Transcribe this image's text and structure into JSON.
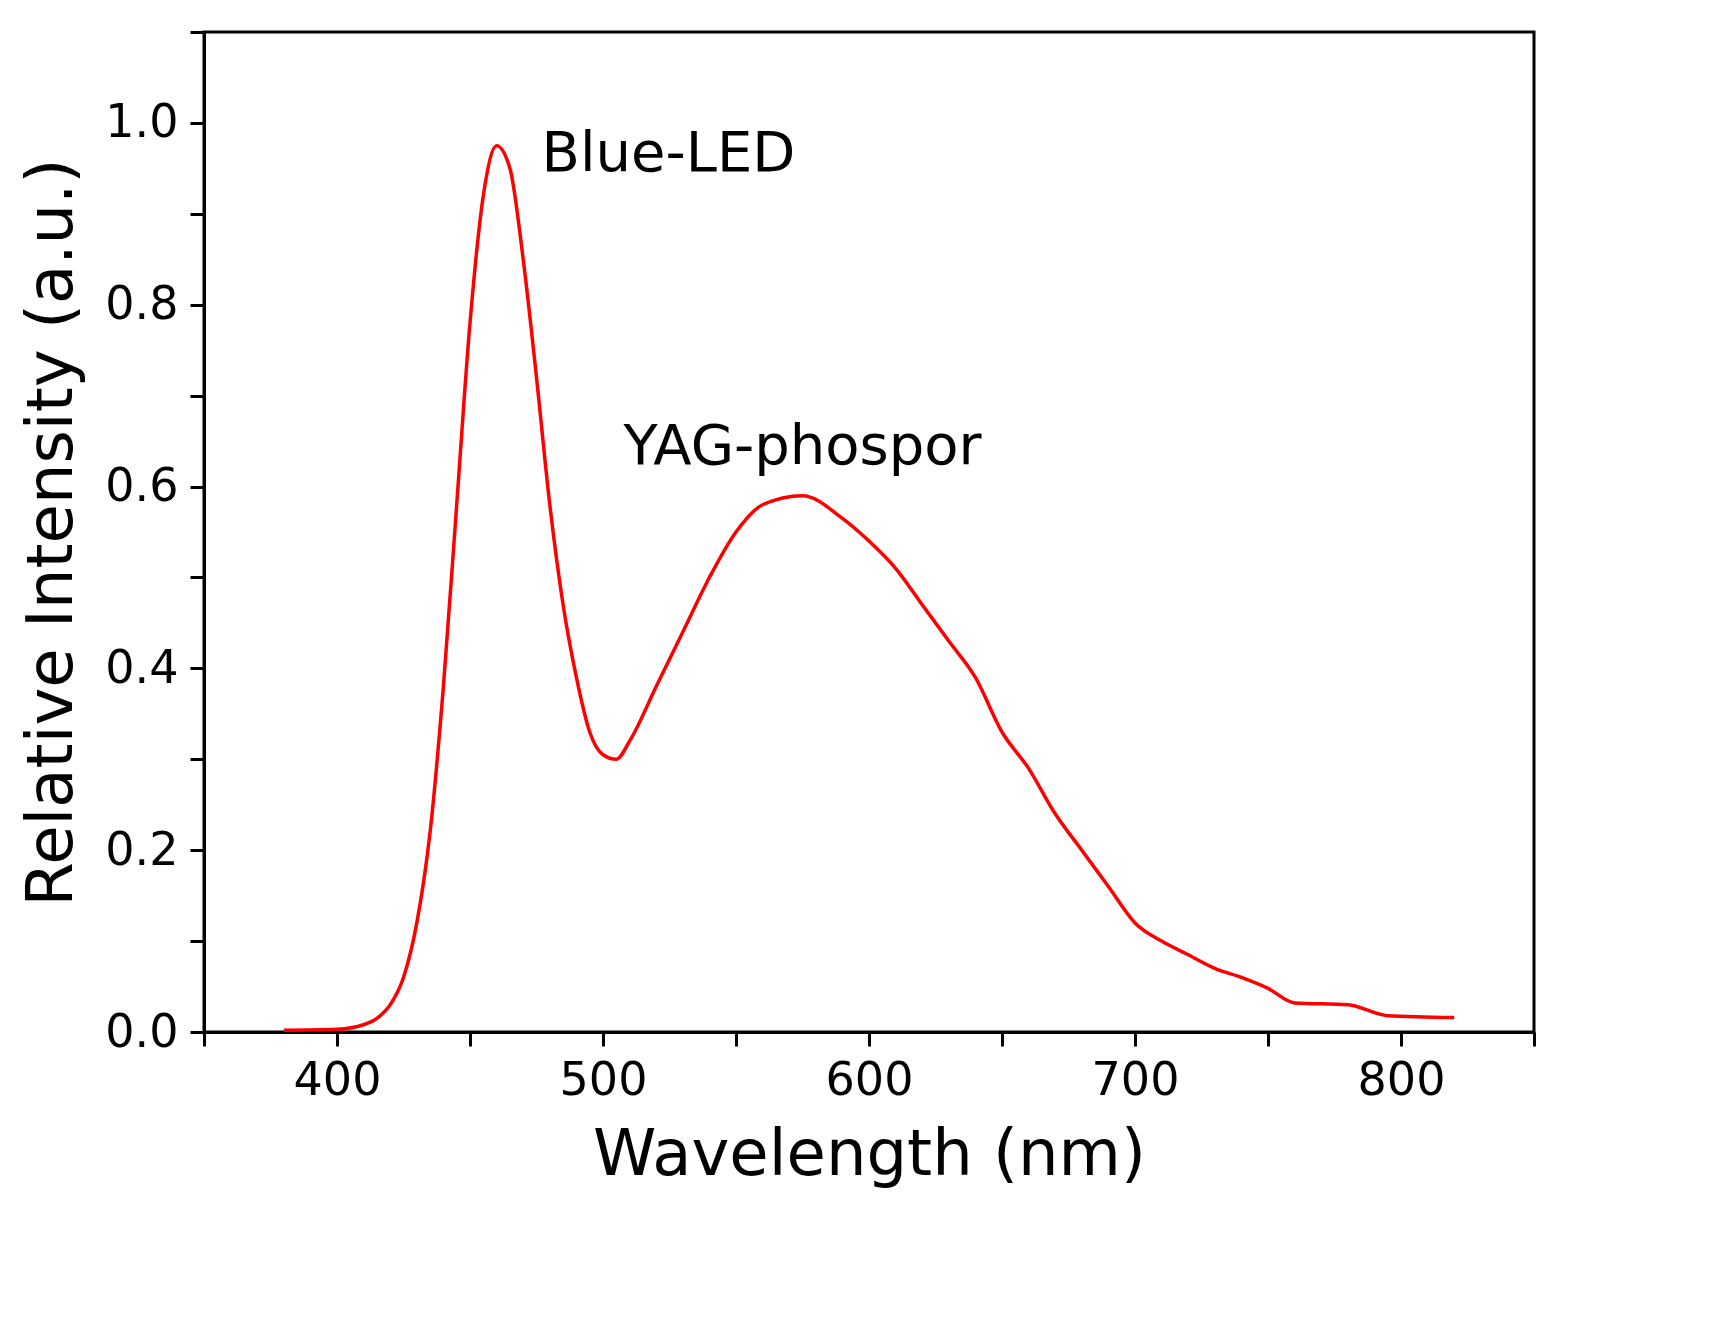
{
  "chart_data": {
    "type": "line",
    "xlabel": "Wavelength (nm)",
    "ylabel": "Relative Intensity (a.u.)",
    "x": [
      380,
      400,
      410,
      415,
      420,
      425,
      430,
      435,
      440,
      445,
      450,
      455,
      460,
      465,
      470,
      475,
      480,
      485,
      490,
      495,
      500,
      505,
      510,
      520,
      530,
      540,
      550,
      560,
      575,
      590,
      600,
      610,
      620,
      630,
      640,
      650,
      660,
      670,
      680,
      690,
      700,
      710,
      720,
      730,
      740,
      750,
      760,
      780,
      795,
      820
    ],
    "series": [
      {
        "color": "#ff0000",
        "values": [
          0.002,
          0.003,
          0.008,
          0.015,
          0.03,
          0.06,
          0.12,
          0.22,
          0.38,
          0.58,
          0.78,
          0.92,
          0.975,
          0.95,
          0.85,
          0.72,
          0.58,
          0.47,
          0.39,
          0.33,
          0.305,
          0.3,
          0.32,
          0.38,
          0.44,
          0.5,
          0.55,
          0.58,
          0.59,
          0.565,
          0.54,
          0.51,
          0.47,
          0.43,
          0.39,
          0.33,
          0.29,
          0.24,
          0.2,
          0.16,
          0.12,
          0.1,
          0.085,
          0.07,
          0.06,
          0.048,
          0.032,
          0.03,
          0.018,
          0.016
        ]
      }
    ],
    "xlim": [
      350,
      850
    ],
    "xticks": [
      {
        "value": 350,
        "label": null
      },
      400,
      {
        "value": 450,
        "label": null
      },
      500,
      {
        "value": 550,
        "label": null
      },
      600,
      {
        "value": 650,
        "label": null
      },
      700,
      {
        "value": 750,
        "label": null
      },
      800,
      {
        "value": 850,
        "label": null
      }
    ],
    "ylim": [
      0,
      1.1
    ],
    "yticks": [
      {
        "value": 0,
        "label": "0.0"
      },
      {
        "value": 0.1,
        "label": null
      },
      {
        "value": 0.2,
        "label": "0.2"
      },
      {
        "value": 0.3,
        "label": null
      },
      {
        "value": 0.4,
        "label": "0.4"
      },
      {
        "value": 0.5,
        "label": null
      },
      {
        "value": 0.6,
        "label": "0.6"
      },
      {
        "value": 0.7,
        "label": null
      },
      {
        "value": 0.8,
        "label": "0.8"
      },
      {
        "value": 0.9,
        "label": null
      },
      {
        "value": 1.0,
        "label": "1.0"
      },
      {
        "value": 1.1,
        "label": null
      }
    ],
    "annotations": [
      {
        "text": "Blue-LED",
        "x": 460,
        "y": 0.975
      },
      {
        "text": "YAG-phospor",
        "x": 575,
        "y": 0.59
      }
    ],
    "grid": false,
    "marker": "none",
    "line_style": "solid"
  }
}
